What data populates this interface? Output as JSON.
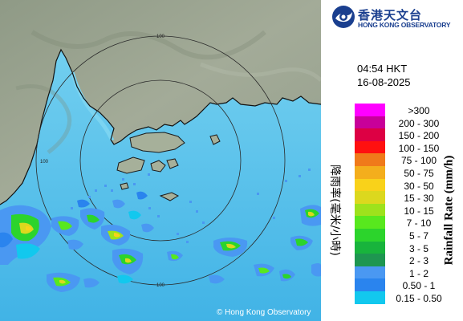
{
  "map": {
    "range_ring_labels": [
      "100",
      "100",
      "100"
    ],
    "copyright": "© Hong Kong Observatory"
  },
  "header": {
    "logo_cn": "香港天文台",
    "logo_en": "HONG KONG OBSERVATORY"
  },
  "observation": {
    "time": "04:54 HKT",
    "date": "16-08-2025"
  },
  "legend": {
    "title_cn": "降雨率(毫米/小時)",
    "title_en": "Rainfall Rate (mm/h)",
    "items": [
      {
        "label": ">300",
        "color": "#ff00ff"
      },
      {
        "label": "200 - 300",
        "color": "#c80099"
      },
      {
        "label": "150 - 200",
        "color": "#dd0044"
      },
      {
        "label": "100 - 150",
        "color": "#ff1010"
      },
      {
        "label": "75 - 100",
        "color": "#f07a1a"
      },
      {
        "label": "50 - 75",
        "color": "#f4ae1c"
      },
      {
        "label": "30 - 50",
        "color": "#f9d21a"
      },
      {
        "label": "15 - 30",
        "color": "#dcd81e"
      },
      {
        "label": "10 - 15",
        "color": "#9ee21c"
      },
      {
        "label": "7 - 10",
        "color": "#58e81e"
      },
      {
        "label": "5 - 7",
        "color": "#2cd42c"
      },
      {
        "label": "3 - 5",
        "color": "#18b43c"
      },
      {
        "label": "2 - 3",
        "color": "#1e9650"
      },
      {
        "label": "1 - 2",
        "color": "#4a98f2"
      },
      {
        "label": "0.50 - 1",
        "color": "#2a84ee"
      },
      {
        "label": "0.15 - 0.50",
        "color": "#12c8ee"
      }
    ]
  }
}
